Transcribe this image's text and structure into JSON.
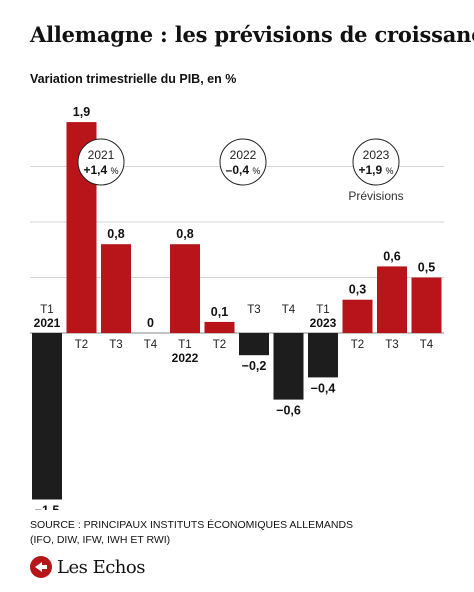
{
  "header": {
    "title": "Allemagne : les prévisions de croissance",
    "subtitle": "Variation trimestrielle du PIB, en %"
  },
  "chart_data": {
    "type": "bar",
    "ylabel": "Variation trimestrielle du PIB, en %",
    "ylim": [
      -1.5,
      2.0
    ],
    "grid": true,
    "categories": [
      "T1 2021",
      "T2 2021",
      "T3 2021",
      "T4 2021",
      "T1 2022",
      "T2 2022",
      "T3 2022",
      "T4 2022",
      "T1 2023",
      "T2 2023",
      "T3 2023",
      "T4 2023"
    ],
    "bars": [
      {
        "quarter": "T1",
        "year": "2021",
        "value": -1.5,
        "label": "−1,5"
      },
      {
        "quarter": "T2",
        "year": "",
        "value": 1.9,
        "label": "1,9"
      },
      {
        "quarter": "T3",
        "year": "",
        "value": 0.8,
        "label": "0,8"
      },
      {
        "quarter": "T4",
        "year": "",
        "value": 0,
        "label": "0"
      },
      {
        "quarter": "T1",
        "year": "2022",
        "value": 0.8,
        "label": "0,8"
      },
      {
        "quarter": "T2",
        "year": "",
        "value": 0.1,
        "label": "0,1"
      },
      {
        "quarter": "T3",
        "year": "",
        "value": -0.2,
        "label": "−0,2"
      },
      {
        "quarter": "T4",
        "year": "",
        "value": -0.6,
        "label": "−0,6"
      },
      {
        "quarter": "T1",
        "year": "2023",
        "value": -0.4,
        "label": "−0,4"
      },
      {
        "quarter": "T2",
        "year": "",
        "value": 0.3,
        "label": "0,3"
      },
      {
        "quarter": "T3",
        "year": "",
        "value": 0.6,
        "label": "0,6"
      },
      {
        "quarter": "T4",
        "year": "",
        "value": 0.5,
        "label": "0,5"
      }
    ],
    "annual": [
      {
        "year": "2021",
        "growth": "+1,4",
        "unit": "%",
        "note": ""
      },
      {
        "year": "2022",
        "growth": "–0,4",
        "unit": "%",
        "note": ""
      },
      {
        "year": "2023",
        "growth": "+1,9",
        "unit": "%",
        "note": "Prévisions"
      }
    ],
    "colors": {
      "positive": "#b7151a",
      "negative": "#1d1d1d",
      "grid": "#d6d6d6"
    }
  },
  "footer": {
    "source_line1": "SOURCE : PRINCIPAUX INSTITUTS ÉCONOMIQUES ALLEMANDS",
    "source_line2": "(IFO, DIW, IFW, IWH ET RWI)",
    "logo_text": "Les Echos"
  }
}
